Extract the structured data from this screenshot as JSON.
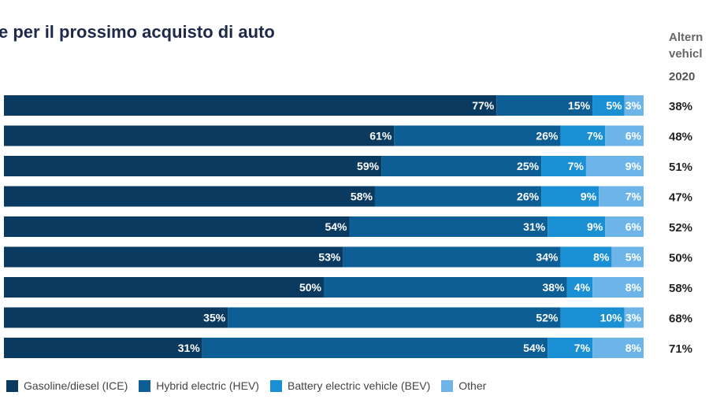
{
  "chart_data": {
    "type": "bar",
    "orientation": "horizontal-stacked-100",
    "title": "e per il prossimo acquisto di auto",
    "right_column": {
      "header": "Altern vehicl",
      "year": "2020",
      "values": [
        "38%",
        "48%",
        "51%",
        "47%",
        "52%",
        "50%",
        "58%",
        "68%",
        "71%"
      ]
    },
    "series": [
      {
        "name": "Gasoline/diesel (ICE)",
        "color": "#0b3a60",
        "values": [
          77,
          61,
          59,
          58,
          54,
          53,
          50,
          35,
          31
        ]
      },
      {
        "name": "Hybrid electric (HEV)",
        "color": "#0d5e94",
        "values": [
          15,
          26,
          25,
          26,
          31,
          34,
          38,
          52,
          54
        ]
      },
      {
        "name": "Battery electric vehicle (BEV)",
        "color": "#1a8fd4",
        "values": [
          5,
          7,
          7,
          9,
          9,
          8,
          4,
          10,
          7
        ]
      },
      {
        "name": "Other",
        "color": "#6db5e8",
        "values": [
          3,
          6,
          9,
          7,
          6,
          5,
          8,
          3,
          8
        ]
      }
    ],
    "xlim": [
      0,
      100
    ]
  }
}
